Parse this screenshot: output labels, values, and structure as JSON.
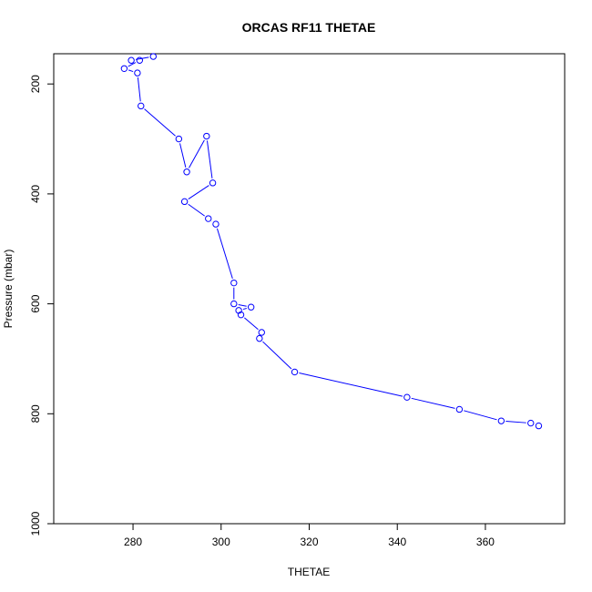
{
  "chart_data": {
    "type": "line",
    "title": "ORCAS RF11 THETAE",
    "xlabel": "THETAE",
    "ylabel": "Pressure (mbar)",
    "xlim": [
      262,
      378
    ],
    "ylim": [
      1000,
      145
    ],
    "y_reversed": true,
    "x_ticks": [
      280,
      300,
      320,
      340,
      360
    ],
    "y_ticks": [
      200,
      400,
      600,
      800,
      1000
    ],
    "grid": false,
    "line_color": "#0000ff",
    "marker": "open-circle",
    "series": [
      {
        "points": [
          [
            284.6,
            150
          ],
          [
            279.6,
            157
          ],
          [
            281.5,
            157
          ],
          [
            278.0,
            172
          ],
          [
            281.0,
            180
          ],
          [
            281.8,
            240
          ],
          [
            290.4,
            300
          ],
          [
            292.2,
            360
          ],
          [
            296.7,
            295
          ],
          [
            298.1,
            380
          ],
          [
            291.7,
            414
          ],
          [
            297.1,
            445
          ],
          [
            298.8,
            455
          ],
          [
            302.9,
            562
          ],
          [
            302.9,
            600
          ],
          [
            306.8,
            606
          ],
          [
            304.0,
            612
          ],
          [
            304.5,
            620
          ],
          [
            309.2,
            652
          ],
          [
            308.7,
            663
          ],
          [
            316.7,
            724
          ],
          [
            342.2,
            770
          ],
          [
            354.1,
            792
          ],
          [
            363.6,
            813
          ],
          [
            370.3,
            817
          ],
          [
            372.1,
            822
          ]
        ]
      }
    ]
  }
}
